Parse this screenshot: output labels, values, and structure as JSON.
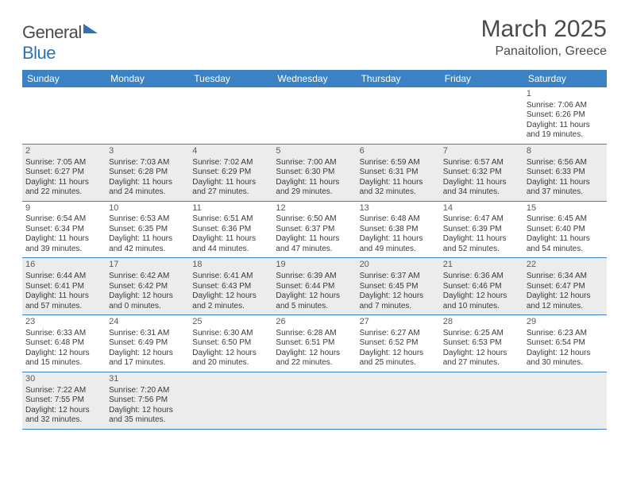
{
  "brand": {
    "part1": "General",
    "part2": "Blue"
  },
  "title": "March 2025",
  "location": "Panaitolion, Greece",
  "dayNames": [
    "Sunday",
    "Monday",
    "Tuesday",
    "Wednesday",
    "Thursday",
    "Friday",
    "Saturday"
  ],
  "colors": {
    "headerBg": "#3b82c4",
    "altRowBg": "#ececec",
    "text": "#3a3a3a",
    "brandBlue": "#2d72b8"
  },
  "weeks": [
    [
      null,
      null,
      null,
      null,
      null,
      null,
      {
        "n": "1",
        "sr": "7:06 AM",
        "ss": "6:26 PM",
        "dl1": "11 hours",
        "dl2": "and 19 minutes."
      }
    ],
    [
      {
        "n": "2",
        "sr": "7:05 AM",
        "ss": "6:27 PM",
        "dl1": "11 hours",
        "dl2": "and 22 minutes."
      },
      {
        "n": "3",
        "sr": "7:03 AM",
        "ss": "6:28 PM",
        "dl1": "11 hours",
        "dl2": "and 24 minutes."
      },
      {
        "n": "4",
        "sr": "7:02 AM",
        "ss": "6:29 PM",
        "dl1": "11 hours",
        "dl2": "and 27 minutes."
      },
      {
        "n": "5",
        "sr": "7:00 AM",
        "ss": "6:30 PM",
        "dl1": "11 hours",
        "dl2": "and 29 minutes."
      },
      {
        "n": "6",
        "sr": "6:59 AM",
        "ss": "6:31 PM",
        "dl1": "11 hours",
        "dl2": "and 32 minutes."
      },
      {
        "n": "7",
        "sr": "6:57 AM",
        "ss": "6:32 PM",
        "dl1": "11 hours",
        "dl2": "and 34 minutes."
      },
      {
        "n": "8",
        "sr": "6:56 AM",
        "ss": "6:33 PM",
        "dl1": "11 hours",
        "dl2": "and 37 minutes."
      }
    ],
    [
      {
        "n": "9",
        "sr": "6:54 AM",
        "ss": "6:34 PM",
        "dl1": "11 hours",
        "dl2": "and 39 minutes."
      },
      {
        "n": "10",
        "sr": "6:53 AM",
        "ss": "6:35 PM",
        "dl1": "11 hours",
        "dl2": "and 42 minutes."
      },
      {
        "n": "11",
        "sr": "6:51 AM",
        "ss": "6:36 PM",
        "dl1": "11 hours",
        "dl2": "and 44 minutes."
      },
      {
        "n": "12",
        "sr": "6:50 AM",
        "ss": "6:37 PM",
        "dl1": "11 hours",
        "dl2": "and 47 minutes."
      },
      {
        "n": "13",
        "sr": "6:48 AM",
        "ss": "6:38 PM",
        "dl1": "11 hours",
        "dl2": "and 49 minutes."
      },
      {
        "n": "14",
        "sr": "6:47 AM",
        "ss": "6:39 PM",
        "dl1": "11 hours",
        "dl2": "and 52 minutes."
      },
      {
        "n": "15",
        "sr": "6:45 AM",
        "ss": "6:40 PM",
        "dl1": "11 hours",
        "dl2": "and 54 minutes."
      }
    ],
    [
      {
        "n": "16",
        "sr": "6:44 AM",
        "ss": "6:41 PM",
        "dl1": "11 hours",
        "dl2": "and 57 minutes."
      },
      {
        "n": "17",
        "sr": "6:42 AM",
        "ss": "6:42 PM",
        "dl1": "12 hours",
        "dl2": "and 0 minutes."
      },
      {
        "n": "18",
        "sr": "6:41 AM",
        "ss": "6:43 PM",
        "dl1": "12 hours",
        "dl2": "and 2 minutes."
      },
      {
        "n": "19",
        "sr": "6:39 AM",
        "ss": "6:44 PM",
        "dl1": "12 hours",
        "dl2": "and 5 minutes."
      },
      {
        "n": "20",
        "sr": "6:37 AM",
        "ss": "6:45 PM",
        "dl1": "12 hours",
        "dl2": "and 7 minutes."
      },
      {
        "n": "21",
        "sr": "6:36 AM",
        "ss": "6:46 PM",
        "dl1": "12 hours",
        "dl2": "and 10 minutes."
      },
      {
        "n": "22",
        "sr": "6:34 AM",
        "ss": "6:47 PM",
        "dl1": "12 hours",
        "dl2": "and 12 minutes."
      }
    ],
    [
      {
        "n": "23",
        "sr": "6:33 AM",
        "ss": "6:48 PM",
        "dl1": "12 hours",
        "dl2": "and 15 minutes."
      },
      {
        "n": "24",
        "sr": "6:31 AM",
        "ss": "6:49 PM",
        "dl1": "12 hours",
        "dl2": "and 17 minutes."
      },
      {
        "n": "25",
        "sr": "6:30 AM",
        "ss": "6:50 PM",
        "dl1": "12 hours",
        "dl2": "and 20 minutes."
      },
      {
        "n": "26",
        "sr": "6:28 AM",
        "ss": "6:51 PM",
        "dl1": "12 hours",
        "dl2": "and 22 minutes."
      },
      {
        "n": "27",
        "sr": "6:27 AM",
        "ss": "6:52 PM",
        "dl1": "12 hours",
        "dl2": "and 25 minutes."
      },
      {
        "n": "28",
        "sr": "6:25 AM",
        "ss": "6:53 PM",
        "dl1": "12 hours",
        "dl2": "and 27 minutes."
      },
      {
        "n": "29",
        "sr": "6:23 AM",
        "ss": "6:54 PM",
        "dl1": "12 hours",
        "dl2": "and 30 minutes."
      }
    ],
    [
      {
        "n": "30",
        "sr": "7:22 AM",
        "ss": "7:55 PM",
        "dl1": "12 hours",
        "dl2": "and 32 minutes."
      },
      {
        "n": "31",
        "sr": "7:20 AM",
        "ss": "7:56 PM",
        "dl1": "12 hours",
        "dl2": "and 35 minutes."
      },
      null,
      null,
      null,
      null,
      null
    ]
  ],
  "labels": {
    "sunrise": "Sunrise:",
    "sunset": "Sunset:",
    "daylight": "Daylight:"
  }
}
